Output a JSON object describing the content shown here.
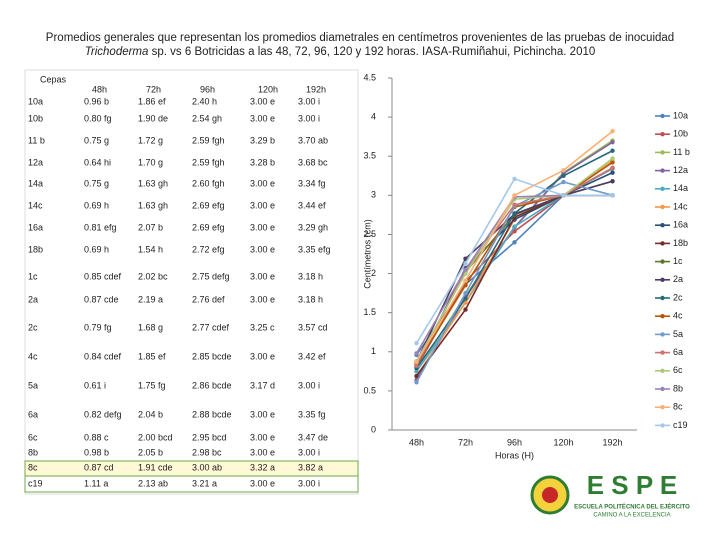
{
  "title": {
    "line1": "Promedios generales  que representan los promedios diametrales en centímetros provenientes de las pruebas de inocuidad",
    "line2_italic": "Trichoderma",
    "line2_rest": " sp. vs 6 Botricidas a las 48, 72, 96, 120 y 192 horas. IASA-Rumiñahui, Pichincha. 2010"
  },
  "table": {
    "header": [
      "Cepas",
      "48h",
      "72h",
      "96h",
      "120h",
      "192h"
    ],
    "rows": [
      [
        "10a",
        "0.96 b",
        "1.86 ef",
        "2.40 h",
        "3.00 e",
        "3.00 i"
      ],
      [
        "10b",
        "0.80 fg",
        "1.90 de",
        "2.54 gh",
        "3.00 e",
        "3.00 i"
      ],
      [
        "11 b",
        "0.75 g",
        "1.72 g",
        "2.59 fgh",
        "3.29 b",
        "3.70 ab"
      ],
      [
        "12a",
        "0.64 hi",
        "1.70 g",
        "2.59 fgh",
        "3.28 b",
        "3.68 bc"
      ],
      [
        "14a",
        "0.75 g",
        "1.63 gh",
        "2.60 fgh",
        "3.00 e",
        "3.34 fg"
      ],
      [
        "14c",
        "0.69 h",
        "1.63 gh",
        "2.69 efg",
        "3.00 e",
        "3.44 ef"
      ],
      [
        "16a",
        "0.81 efg",
        "2.07 b",
        "2.69 efg",
        "3.00 e",
        "3.29 gh"
      ],
      [
        "18b",
        "0.69 h",
        "1.54 h",
        "2.72 efg",
        "3.00 e",
        "3.35 efg"
      ],
      [
        "1c",
        "0.85 cdef",
        "2.02 bc",
        "2.75 defg",
        "3.00 e",
        "3.18 h"
      ],
      [
        "2a",
        "0.87 cde",
        "2.19 a",
        "2.76 def",
        "3.00 e",
        "3.18 h"
      ],
      [
        "2c",
        "0.79 fg",
        "1.68 g",
        "2.77 cdef",
        "3.25 c",
        "3.57 cd"
      ],
      [
        "4c",
        "0.84 cdef",
        "1.85 ef",
        "2.85 bcde",
        "3.00 e",
        "3.42 ef"
      ],
      [
        "5a",
        "0.61 i",
        "1.75 fg",
        "2.86 bcde",
        "3.17 d",
        "3.00 i"
      ],
      [
        "6a",
        "0.82 defg",
        "2.04 b",
        "2.88 bcde",
        "3.00 e",
        "3.35 fg"
      ],
      [
        "6c",
        "0.88 c",
        "2.00 bcd",
        "2.95 bcd",
        "3.00 e",
        "3.47 de"
      ],
      [
        "8b",
        "0.98 b",
        "2.05 b",
        "2.98 bc",
        "3.00 e",
        "3.00 i"
      ],
      [
        "8c",
        "0.87 cd",
        "1.91 cde",
        "3.00 ab",
        "3.32 a",
        "3.82 a"
      ],
      [
        "c19",
        "1.11 a",
        "2.13 ab",
        "3.21 a",
        "3.00 e",
        "3.00 i"
      ]
    ]
  },
  "chart_data": {
    "type": "line",
    "y_label": "Centímetros (cm)",
    "x_label": "Horas (H)",
    "categories": [
      "48h",
      "72h",
      "96h",
      "120h",
      "192h"
    ],
    "ylim": [
      0,
      4.5
    ],
    "yticks": [
      0,
      0.5,
      1,
      1.5,
      2,
      2.5,
      3,
      3.5,
      4,
      4.5
    ],
    "series": [
      {
        "name": "10a",
        "color": "#4f81bd",
        "values": [
          0.96,
          1.86,
          2.4,
          3.0,
          3.0
        ]
      },
      {
        "name": "10b",
        "color": "#c0504d",
        "values": [
          0.8,
          1.9,
          2.54,
          3.0,
          3.0
        ]
      },
      {
        "name": "11 b",
        "color": "#9bbb59",
        "values": [
          0.75,
          1.72,
          2.59,
          3.29,
          3.7
        ]
      },
      {
        "name": "12a",
        "color": "#8064a2",
        "values": [
          0.64,
          1.7,
          2.59,
          3.28,
          3.68
        ]
      },
      {
        "name": "14a",
        "color": "#4bacc6",
        "values": [
          0.75,
          1.63,
          2.6,
          3.0,
          3.34
        ]
      },
      {
        "name": "14c",
        "color": "#f79646",
        "values": [
          0.69,
          1.63,
          2.69,
          3.0,
          3.44
        ]
      },
      {
        "name": "16a",
        "color": "#2c4d75",
        "values": [
          0.81,
          2.07,
          2.69,
          3.0,
          3.29
        ]
      },
      {
        "name": "18b",
        "color": "#772c2a",
        "values": [
          0.69,
          1.54,
          2.72,
          3.0,
          3.35
        ]
      },
      {
        "name": "1c",
        "color": "#5f7530",
        "values": [
          0.85,
          2.02,
          2.75,
          3.0,
          3.18
        ]
      },
      {
        "name": "2a",
        "color": "#4d3b62",
        "values": [
          0.87,
          2.19,
          2.76,
          3.0,
          3.18
        ]
      },
      {
        "name": "2c",
        "color": "#276a7c",
        "values": [
          0.79,
          1.68,
          2.77,
          3.25,
          3.57
        ]
      },
      {
        "name": "4c",
        "color": "#b65708",
        "values": [
          0.84,
          1.85,
          2.85,
          3.0,
          3.42
        ]
      },
      {
        "name": "5a",
        "color": "#729aca",
        "values": [
          0.61,
          1.75,
          2.86,
          3.17,
          3.0
        ]
      },
      {
        "name": "6a",
        "color": "#cd7371",
        "values": [
          0.82,
          2.04,
          2.88,
          3.0,
          3.35
        ]
      },
      {
        "name": "6c",
        "color": "#afc97a",
        "values": [
          0.88,
          2.0,
          2.95,
          3.0,
          3.47
        ]
      },
      {
        "name": "8b",
        "color": "#9983b5",
        "values": [
          0.98,
          2.05,
          2.98,
          3.0,
          3.0
        ]
      },
      {
        "name": "8c",
        "color": "#f9b074",
        "values": [
          0.87,
          1.91,
          3.0,
          3.32,
          3.82
        ]
      },
      {
        "name": "c19",
        "color": "#a5c8e8",
        "values": [
          1.11,
          2.13,
          3.21,
          3.0,
          3.0
        ]
      }
    ]
  },
  "logo": {
    "name": "E S P E",
    "line1": "ESCUELA POLITÉCNICA DEL EJÉRCITO",
    "line2": "CAMINO A LA EXCELENCIA"
  }
}
